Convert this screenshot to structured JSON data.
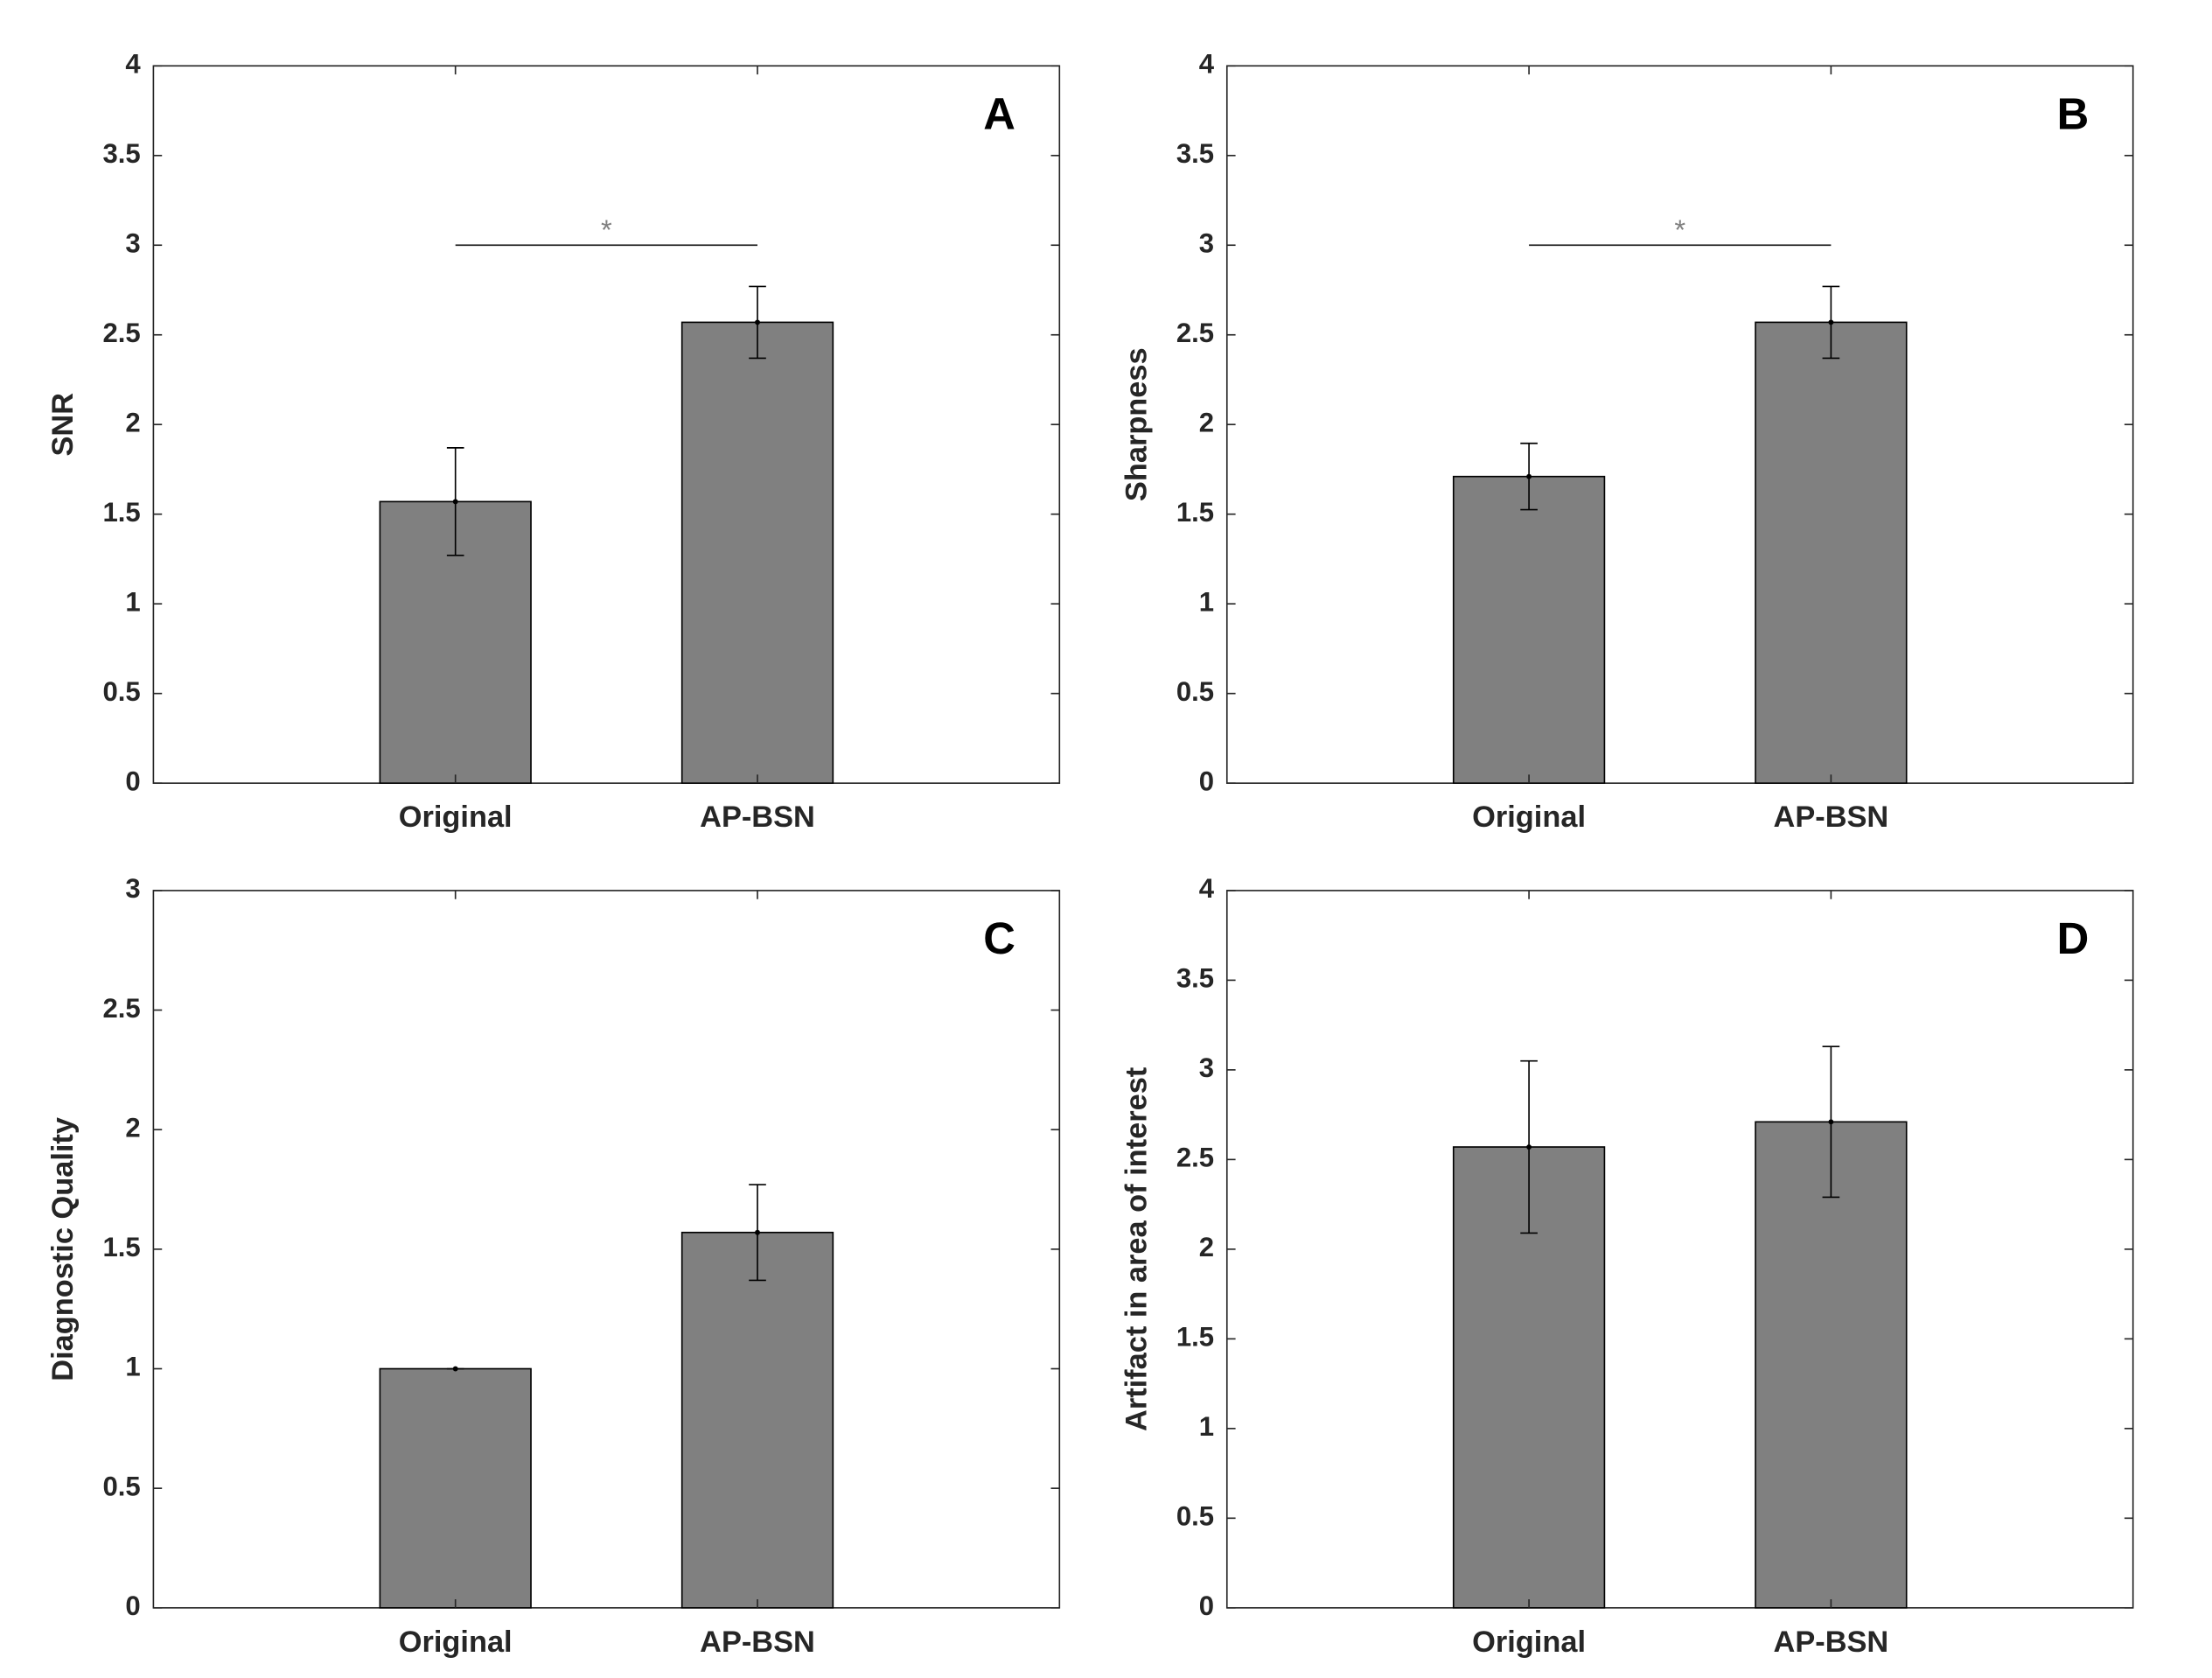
{
  "chart_data": [
    {
      "type": "bar",
      "panel": "A",
      "ylabel": "SNR",
      "categories": [
        "Original",
        "AP-BSN"
      ],
      "values": [
        1.57,
        2.57
      ],
      "errors": [
        0.3,
        0.2
      ],
      "color": "#808080",
      "ylim": [
        0,
        4
      ],
      "yticks": [
        0,
        0.5,
        1,
        1.5,
        2,
        2.5,
        3,
        3.5,
        4
      ],
      "significance": {
        "text": "*",
        "y": 3,
        "between": [
          "Original",
          "AP-BSN"
        ]
      }
    },
    {
      "type": "bar",
      "panel": "B",
      "ylabel": "Sharpness",
      "categories": [
        "Original",
        "AP-BSN"
      ],
      "values": [
        1.71,
        2.57
      ],
      "errors": [
        0.185,
        0.2
      ],
      "color": "#808080",
      "ylim": [
        0,
        4
      ],
      "yticks": [
        0,
        0.5,
        1,
        1.5,
        2,
        2.5,
        3,
        3.5,
        4
      ],
      "significance": {
        "text": "*",
        "y": 3,
        "between": [
          "Original",
          "AP-BSN"
        ]
      }
    },
    {
      "type": "bar",
      "panel": "C",
      "ylabel": "Diagnostic Quality",
      "categories": [
        "Original",
        "AP-BSN"
      ],
      "values": [
        1,
        1.57
      ],
      "errors": [
        0,
        0.2
      ],
      "color": "#808080",
      "ylim": [
        0,
        3
      ],
      "yticks": [
        0,
        0.5,
        1,
        1.5,
        2,
        2.5,
        3
      ]
    },
    {
      "type": "bar",
      "panel": "D",
      "ylabel": "Artifact in area of interest",
      "categories": [
        "Original",
        "AP-BSN"
      ],
      "values": [
        2.57,
        2.71
      ],
      "errors": [
        0.48,
        0.42
      ],
      "color": "#808080",
      "ylim": [
        0,
        4
      ],
      "yticks": [
        0,
        0.5,
        1,
        1.5,
        2,
        2.5,
        3,
        3.5,
        4
      ]
    }
  ]
}
